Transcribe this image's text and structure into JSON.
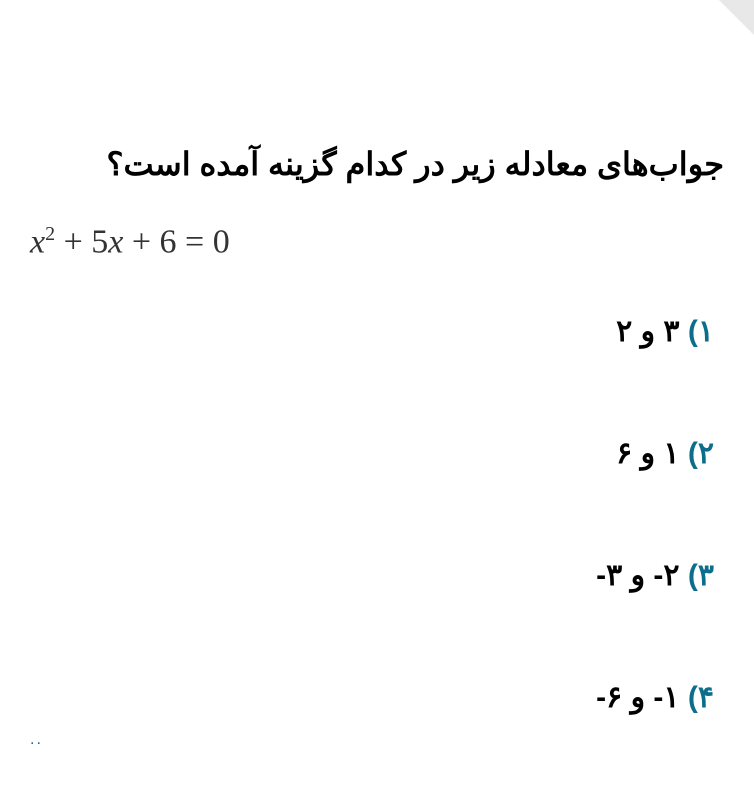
{
  "question": {
    "text": "جواب‌های معادله زیر در کدام گزینه آمده است؟",
    "color": "#000000",
    "fontsize": 32
  },
  "equation": {
    "display": "x² + 5x + 6 = 0",
    "var": "x",
    "exp": "2",
    "rest": " + 5",
    "var2": "x",
    "rest2": " + 6 = 0",
    "color": "#333333",
    "fontsize": 34
  },
  "options": {
    "num_color": "#0d6e8c",
    "text_color": "#000000",
    "fontsize": 30,
    "spacing": 80,
    "items": [
      {
        "num": "۱)",
        "text": "۳ و ۲"
      },
      {
        "num": "۲)",
        "text": "۱ و ۶"
      },
      {
        "num": "۳)",
        "text": " ۲- و ۳-"
      },
      {
        "num": "۴)",
        "text": "۱- و ۶-"
      }
    ]
  },
  "decoration": {
    "dots": "..",
    "corner_color": "#e8e8e8"
  }
}
